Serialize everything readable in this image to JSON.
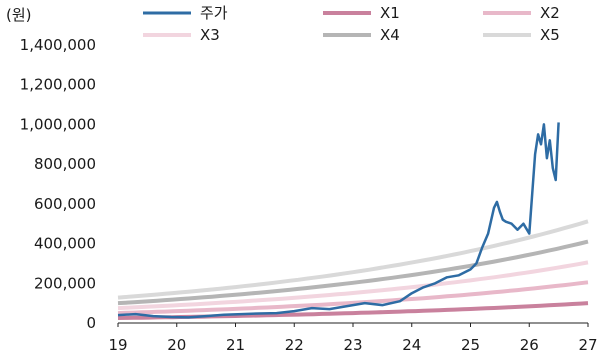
{
  "chart_data": {
    "type": "line",
    "unit_label": "(원)",
    "xlim": [
      19,
      27
    ],
    "ylim": [
      0,
      1400000
    ],
    "x_ticks": [
      "19",
      "20",
      "21",
      "22",
      "23",
      "24",
      "25",
      "26",
      "27"
    ],
    "y_ticks": [
      "0",
      "200,000",
      "400,000",
      "600,000",
      "800,000",
      "1,000,000",
      "1,200,000",
      "1,400,000"
    ],
    "legend_position": "top",
    "series": [
      {
        "name": "주가",
        "color": "#2e6ca4",
        "x": [
          19.0,
          19.3,
          19.6,
          19.9,
          20.2,
          20.5,
          20.8,
          21.1,
          21.4,
          21.7,
          22.0,
          22.3,
          22.6,
          22.9,
          23.2,
          23.5,
          23.8,
          24.0,
          24.2,
          24.4,
          24.6,
          24.8,
          25.0,
          25.1,
          25.2,
          25.3,
          25.4,
          25.45,
          25.5,
          25.55,
          25.6,
          25.7,
          25.8,
          25.9,
          26.0,
          26.05,
          26.1,
          26.15,
          26.2,
          26.25,
          26.3,
          26.35,
          26.4,
          26.45,
          26.5
        ],
        "values": [
          40000,
          45000,
          35000,
          30000,
          28000,
          35000,
          42000,
          45000,
          48000,
          50000,
          60000,
          75000,
          70000,
          85000,
          100000,
          90000,
          110000,
          150000,
          180000,
          200000,
          230000,
          240000,
          270000,
          300000,
          380000,
          450000,
          580000,
          610000,
          560000,
          520000,
          510000,
          500000,
          470000,
          500000,
          450000,
          650000,
          850000,
          950000,
          900000,
          1000000,
          830000,
          920000,
          780000,
          720000,
          1010000
        ]
      },
      {
        "name": "X1",
        "color": "#c9819d",
        "x": [
          19,
          27
        ],
        "start": 25000,
        "end": 100000
      },
      {
        "name": "X2",
        "color": "#e8b8c9",
        "x": [
          19,
          27
        ],
        "start": 50000,
        "end": 205000
      },
      {
        "name": "X3",
        "color": "#f2d5df",
        "x": [
          19,
          27
        ],
        "start": 75000,
        "end": 305000
      },
      {
        "name": "X4",
        "color": "#b5b5b5",
        "x": [
          19,
          27
        ],
        "start": 100000,
        "end": 410000
      },
      {
        "name": "X5",
        "color": "#d9d9d9",
        "x": [
          19,
          27
        ],
        "start": 128000,
        "end": 512000
      }
    ]
  }
}
